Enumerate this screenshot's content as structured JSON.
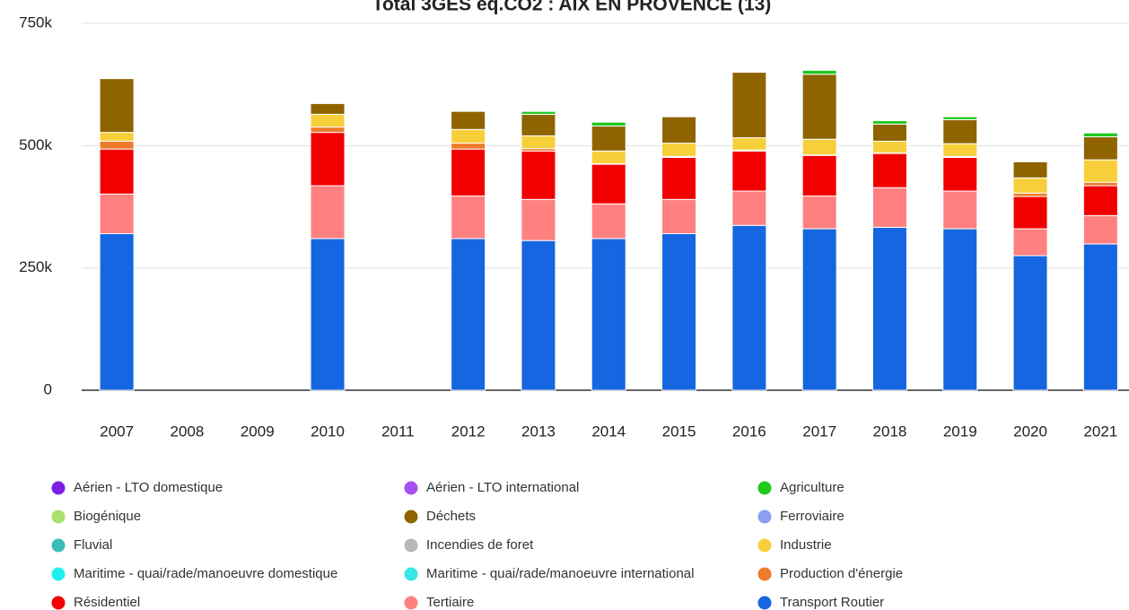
{
  "chart_data": {
    "type": "stacked_bar",
    "title": "Total 3GES eq.CO2 : AIX EN PROVENCE (13)",
    "categories": [
      "2007",
      "2008",
      "2009",
      "2010",
      "2011",
      "2012",
      "2013",
      "2014",
      "2015",
      "2016",
      "2017",
      "2018",
      "2019",
      "2020",
      "2021"
    ],
    "ylim": [
      0,
      750000
    ],
    "yticks": [
      {
        "value": 0,
        "label": "0"
      },
      {
        "value": 250000,
        "label": "250k"
      },
      {
        "value": 500000,
        "label": "500k"
      },
      {
        "value": 750000,
        "label": "750k"
      }
    ],
    "grid": true,
    "legend": "bottom",
    "series": [
      {
        "name": "Aérien - LTO domestique",
        "color": "#7b1fe6",
        "values": [
          0,
          null,
          null,
          0,
          null,
          0,
          0,
          0,
          0,
          0,
          0,
          0,
          0,
          0,
          0
        ]
      },
      {
        "name": "Aérien - LTO international",
        "color": "#a650f0",
        "values": [
          0,
          null,
          null,
          0,
          null,
          0,
          0,
          0,
          0,
          0,
          0,
          0,
          0,
          0,
          0
        ]
      },
      {
        "name": "Agriculture",
        "color": "#1ec81e",
        "values": [
          0,
          null,
          null,
          0,
          null,
          0,
          6000,
          8000,
          0,
          0,
          8000,
          7000,
          6000,
          0,
          8000
        ]
      },
      {
        "name": "Biogénique",
        "color": "#a8e06a",
        "values": [
          0,
          null,
          null,
          0,
          null,
          0,
          0,
          0,
          0,
          0,
          0,
          0,
          0,
          0,
          0
        ]
      },
      {
        "name": "Déchets",
        "color": "#8f6400",
        "values": [
          110000,
          null,
          null,
          22000,
          null,
          37000,
          44000,
          51000,
          54000,
          134000,
          133000,
          35000,
          49000,
          33000,
          47000
        ]
      },
      {
        "name": "Ferroviaire",
        "color": "#8c9ef2",
        "values": [
          0,
          null,
          null,
          0,
          null,
          0,
          0,
          0,
          0,
          0,
          0,
          0,
          0,
          0,
          0
        ]
      },
      {
        "name": "Fluvial",
        "color": "#3cbcb8",
        "values": [
          0,
          null,
          null,
          0,
          null,
          0,
          0,
          0,
          0,
          0,
          0,
          0,
          0,
          0,
          0
        ]
      },
      {
        "name": "Incendies de foret",
        "color": "#b8b8b8",
        "values": [
          0,
          null,
          null,
          0,
          null,
          0,
          0,
          0,
          0,
          0,
          0,
          0,
          0,
          0,
          0
        ]
      },
      {
        "name": "Industrie",
        "color": "#f7cf3a",
        "values": [
          18000,
          null,
          null,
          26000,
          null,
          28000,
          26000,
          26000,
          27000,
          25000,
          32000,
          24000,
          26000,
          31000,
          46000
        ]
      },
      {
        "name": "Maritime - quai/rade/manoeuvre domestique",
        "color": "#1ef0f0",
        "values": [
          0,
          null,
          null,
          0,
          null,
          0,
          0,
          0,
          0,
          0,
          0,
          0,
          0,
          0,
          0
        ]
      },
      {
        "name": "Maritime - quai/rade/manoeuvre international",
        "color": "#3ae6e6",
        "values": [
          0,
          null,
          null,
          0,
          null,
          0,
          0,
          0,
          0,
          0,
          0,
          0,
          0,
          0,
          0
        ]
      },
      {
        "name": "Production d'énergie",
        "color": "#ee7a2c",
        "values": [
          16000,
          null,
          null,
          11000,
          null,
          12000,
          5000,
          1000,
          2000,
          2000,
          1000,
          1000,
          2000,
          7000,
          7000
        ]
      },
      {
        "name": "Résidentiel",
        "color": "#f20000",
        "values": [
          92000,
          null,
          null,
          109000,
          null,
          96000,
          99000,
          81000,
          86000,
          82000,
          83000,
          70000,
          69000,
          66000,
          61000
        ]
      },
      {
        "name": "Tertiaire",
        "color": "#ff8080",
        "values": [
          81000,
          null,
          null,
          108000,
          null,
          87000,
          84000,
          71000,
          70000,
          70000,
          67000,
          81000,
          77000,
          55000,
          58000
        ]
      },
      {
        "name": "Transport Routier",
        "color": "#1566e0",
        "values": [
          320000,
          null,
          null,
          310000,
          null,
          310000,
          306000,
          310000,
          320000,
          337000,
          330000,
          333000,
          330000,
          275000,
          299000
        ]
      }
    ]
  }
}
